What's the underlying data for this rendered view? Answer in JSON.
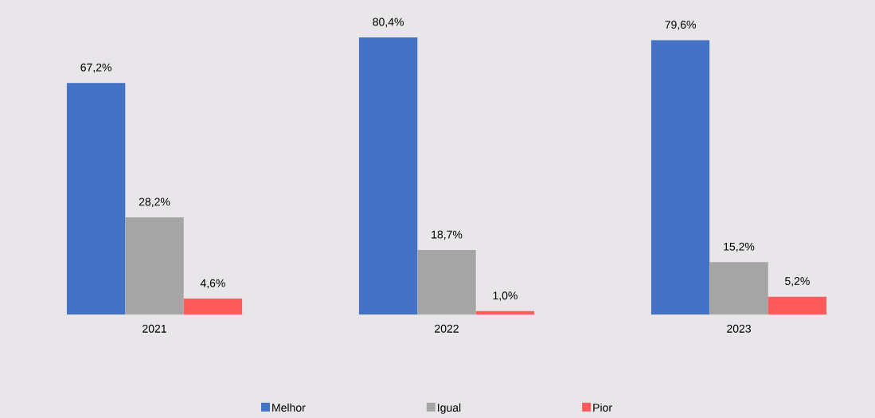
{
  "chart_data": {
    "type": "bar",
    "categories": [
      "2021",
      "2022",
      "2023"
    ],
    "series": [
      {
        "name": "Melhor",
        "color": "#4472c4",
        "values": [
          67.2,
          80.4,
          79.6
        ],
        "value_labels": [
          "67,2%",
          "80,4%",
          "79,6%"
        ]
      },
      {
        "name": "Igual",
        "color": "#a5a5a5",
        "values": [
          28.2,
          18.7,
          15.2
        ],
        "value_labels": [
          "28,2%",
          "18,7%",
          "15,2%"
        ]
      },
      {
        "name": "Pior",
        "color": "#ff5b5b",
        "values": [
          4.6,
          1.0,
          5.2
        ],
        "value_labels": [
          "4,6%",
          "1,0%",
          "5,2%"
        ]
      }
    ],
    "legend": "bottom"
  }
}
